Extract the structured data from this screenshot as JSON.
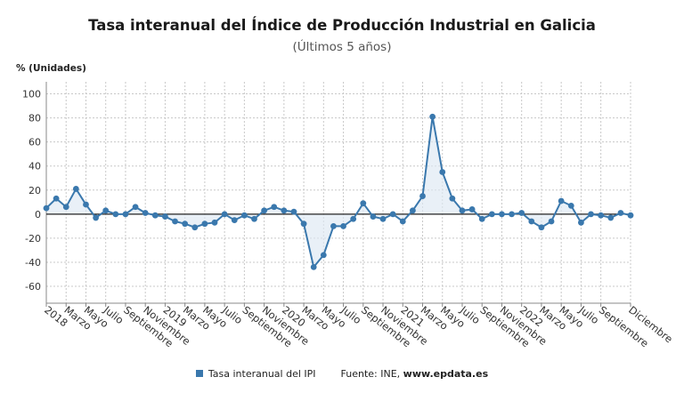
{
  "title": "Tasa interanual del Índice de Producción Industrial en Galicia",
  "subtitle": "(Últimos 5 años)",
  "colors": {
    "series": "#3a78ad",
    "fill": "#dde8f3",
    "grid": "#c8c8c8",
    "zero": "#222222"
  },
  "legend": {
    "series_label": "Tasa interanual del IPI",
    "source_prefix": "Fuente: INE, ",
    "source_site": "www.epdata.es"
  },
  "chart_data": {
    "type": "line",
    "title": "Tasa interanual del Índice de Producción Industrial en Galicia",
    "subtitle": "(Últimos 5 años)",
    "ylabel": "% (Unidades)",
    "xlabel": "",
    "ylim": [
      -74,
      110
    ],
    "yticks": [
      -60,
      -40,
      -20,
      0,
      20,
      40,
      60,
      80,
      100
    ],
    "grid": true,
    "legend_position": "bottom",
    "x_tick_labels": [
      "2018",
      "Marzo",
      "Mayo",
      "Julio",
      "Septiembre",
      "Noviembre",
      "2019",
      "Marzo",
      "Mayo",
      "Julio",
      "Septiembre",
      "Noviembre",
      "2020",
      "Marzo",
      "Mayo",
      "Julio",
      "Septiembre",
      "Noviembre",
      "2021",
      "Marzo",
      "Mayo",
      "Julio",
      "Septiembre",
      "Noviembre",
      "2022",
      "Marzo",
      "Mayo",
      "Julio",
      "Septiembre",
      "Diciembre"
    ],
    "x_tick_months": [
      0,
      2,
      4,
      6,
      8,
      10,
      12,
      14,
      16,
      18,
      20,
      22,
      24,
      26,
      28,
      30,
      32,
      34,
      36,
      38,
      40,
      42,
      44,
      46,
      48,
      50,
      52,
      54,
      56,
      59
    ],
    "series": [
      {
        "name": "Tasa interanual del IPI",
        "values": [
          5,
          13,
          6,
          21,
          8,
          -3,
          3,
          0,
          0,
          6,
          1,
          -1,
          -2,
          -6,
          -8,
          -11,
          -8,
          -7,
          0,
          -5,
          -1,
          -4,
          3,
          6,
          3,
          2,
          -8,
          -44,
          -34,
          -10,
          -10,
          -4,
          9,
          -2,
          -4,
          0,
          -6,
          3,
          15,
          81,
          35,
          13,
          3,
          4,
          -4,
          0,
          0,
          0,
          1,
          -6,
          -11,
          -6,
          11,
          7,
          -7,
          0,
          -1,
          -3,
          1,
          -1
        ]
      }
    ]
  }
}
